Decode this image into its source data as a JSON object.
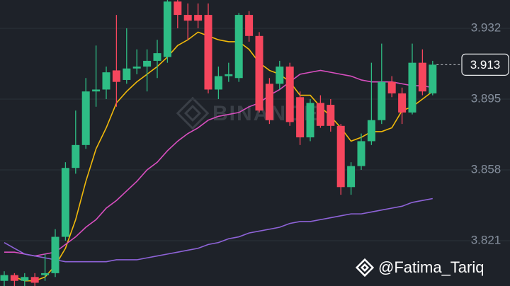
{
  "chart_data": {
    "type": "candlestick",
    "watermark": "BINANCE",
    "credit": "@Fatima_Tariq",
    "ylim": [
      3.7973,
      3.9468
    ],
    "yticks": [
      3.821,
      3.858,
      3.895,
      3.932
    ],
    "grid": true,
    "last_price": 3.913,
    "up_color": "#2ebd85",
    "down_color": "#f6465d",
    "open": [
      3.8,
      3.803,
      3.8,
      3.802,
      3.803,
      3.804,
      3.823,
      3.859,
      3.871,
      3.899,
      3.9,
      3.91,
      3.905,
      3.911,
      3.912,
      3.915,
      3.917,
      3.946,
      3.939,
      3.939,
      3.939,
      3.9,
      3.907,
      3.906,
      3.939,
      3.928,
      3.903,
      3.903,
      3.912,
      3.896,
      3.875,
      3.893,
      3.892,
      3.881,
      3.849,
      3.86,
      3.873,
      3.884,
      3.904,
      3.898,
      3.888,
      3.914,
      3.898
    ],
    "high": [
      3.805,
      3.804,
      3.804,
      3.804,
      3.814,
      3.827,
      3.862,
      3.889,
      3.906,
      3.923,
      3.912,
      3.939,
      3.932,
      3.921,
      3.921,
      3.926,
      3.947,
      3.947,
      3.945,
      3.945,
      3.945,
      3.912,
      3.914,
      3.94,
      3.941,
      3.93,
      3.906,
      3.915,
      3.914,
      3.899,
      3.895,
      3.897,
      3.895,
      3.882,
      3.862,
      3.877,
      3.914,
      3.924,
      3.907,
      3.901,
      3.924,
      3.921,
      3.915
    ],
    "low": [
      3.797,
      3.797,
      3.797,
      3.797,
      3.8,
      3.802,
      3.821,
      3.856,
      3.869,
      3.891,
      3.895,
      3.891,
      3.903,
      3.908,
      3.899,
      3.906,
      3.914,
      3.932,
      3.926,
      3.932,
      3.898,
      3.895,
      3.904,
      3.904,
      3.925,
      3.888,
      3.882,
      3.9,
      3.881,
      3.871,
      3.873,
      3.88,
      3.878,
      3.845,
      3.845,
      3.858,
      3.871,
      3.882,
      3.896,
      3.882,
      3.887,
      3.897,
      3.897
    ],
    "close": [
      3.803,
      3.8,
      3.802,
      3.799,
      3.804,
      3.823,
      3.859,
      3.871,
      3.899,
      3.9,
      3.909,
      3.904,
      3.911,
      3.912,
      3.915,
      3.919,
      3.946,
      3.939,
      3.936,
      3.936,
      3.9,
      3.907,
      3.908,
      3.939,
      3.928,
      3.889,
      3.884,
      3.912,
      3.883,
      3.875,
      3.893,
      3.881,
      3.881,
      3.849,
      3.86,
      3.873,
      3.884,
      3.904,
      3.898,
      3.888,
      3.914,
      3.899,
      3.913
    ],
    "series": [
      {
        "color": "#f0b90b",
        "values": [
          null,
          3.802,
          3.8,
          3.8,
          3.802,
          3.808,
          3.817,
          3.832,
          3.852,
          3.869,
          3.88,
          3.893,
          3.899,
          3.904,
          3.908,
          3.912,
          3.917,
          3.923,
          3.926,
          3.93,
          3.928,
          3.926,
          3.925,
          3.925,
          3.921,
          3.914,
          3.91,
          3.908,
          3.904,
          3.897,
          3.897,
          3.891,
          3.886,
          3.88,
          3.873,
          3.875,
          3.878,
          3.878,
          3.88,
          3.889,
          3.891,
          3.895,
          3.899
        ]
      },
      {
        "color": "#d94fc0",
        "values": [
          3.815,
          3.815,
          3.814,
          3.813,
          3.814,
          3.815,
          3.819,
          3.823,
          3.828,
          3.832,
          3.838,
          3.842,
          3.847,
          3.852,
          3.858,
          3.862,
          3.868,
          3.873,
          3.877,
          3.88,
          3.884,
          3.886,
          3.887,
          3.888,
          3.891,
          3.893,
          3.897,
          3.9,
          3.904,
          3.908,
          3.909,
          3.91,
          3.909,
          3.908,
          3.907,
          3.905,
          3.904,
          3.904,
          3.904,
          3.903,
          3.902,
          3.902,
          3.901
        ]
      },
      {
        "color": "#8e63d8",
        "values": [
          3.82,
          3.817,
          3.814,
          3.813,
          3.812,
          3.811,
          3.81,
          3.81,
          3.81,
          3.81,
          3.81,
          3.811,
          3.811,
          3.811,
          3.812,
          3.813,
          3.814,
          3.815,
          3.816,
          3.817,
          3.819,
          3.82,
          3.822,
          3.823,
          3.825,
          3.826,
          3.827,
          3.828,
          3.83,
          3.831,
          3.831,
          3.832,
          3.833,
          3.834,
          3.835,
          3.835,
          3.836,
          3.837,
          3.838,
          3.839,
          3.841,
          3.842,
          3.843
        ]
      }
    ]
  }
}
